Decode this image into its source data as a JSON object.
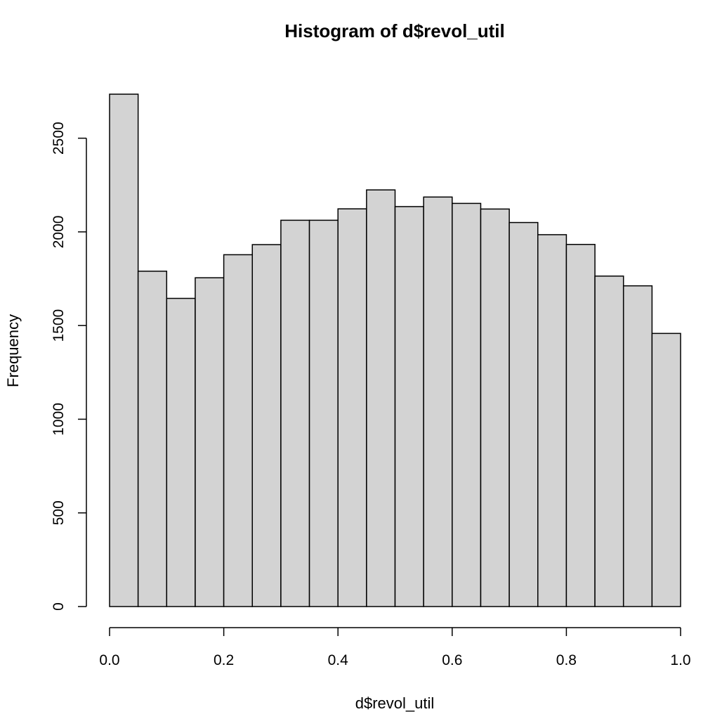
{
  "chart_data": {
    "type": "bar",
    "title": "Histogram of d$revol_util",
    "xlabel": "d$revol_util",
    "ylabel": "Frequency",
    "bin_edges": [
      0.0,
      0.05,
      0.1,
      0.15,
      0.2,
      0.25,
      0.3,
      0.35,
      0.4,
      0.45,
      0.5,
      0.55,
      0.6,
      0.65,
      0.7,
      0.75,
      0.8,
      0.85,
      0.9,
      0.95,
      1.0
    ],
    "values": [
      2735,
      1790,
      1645,
      1755,
      1878,
      1932,
      2062,
      2062,
      2123,
      2224,
      2135,
      2186,
      2152,
      2122,
      2050,
      1985,
      1933,
      1764,
      1712,
      1458
    ],
    "xlim": [
      0.0,
      1.0
    ],
    "ylim": [
      0,
      2735
    ],
    "x_ticks": [
      {
        "value": 0.0,
        "label": "0.0"
      },
      {
        "value": 0.2,
        "label": "0.2"
      },
      {
        "value": 0.4,
        "label": "0.4"
      },
      {
        "value": 0.6,
        "label": "0.6"
      },
      {
        "value": 0.8,
        "label": "0.8"
      },
      {
        "value": 1.0,
        "label": "1.0"
      }
    ],
    "y_ticks": [
      {
        "value": 0,
        "label": "0"
      },
      {
        "value": 500,
        "label": "500"
      },
      {
        "value": 1000,
        "label": "1000"
      },
      {
        "value": 1500,
        "label": "1500"
      },
      {
        "value": 2000,
        "label": "2000"
      },
      {
        "value": 2500,
        "label": "2500"
      }
    ],
    "bar_color": "#d3d3d3",
    "grid": false
  }
}
